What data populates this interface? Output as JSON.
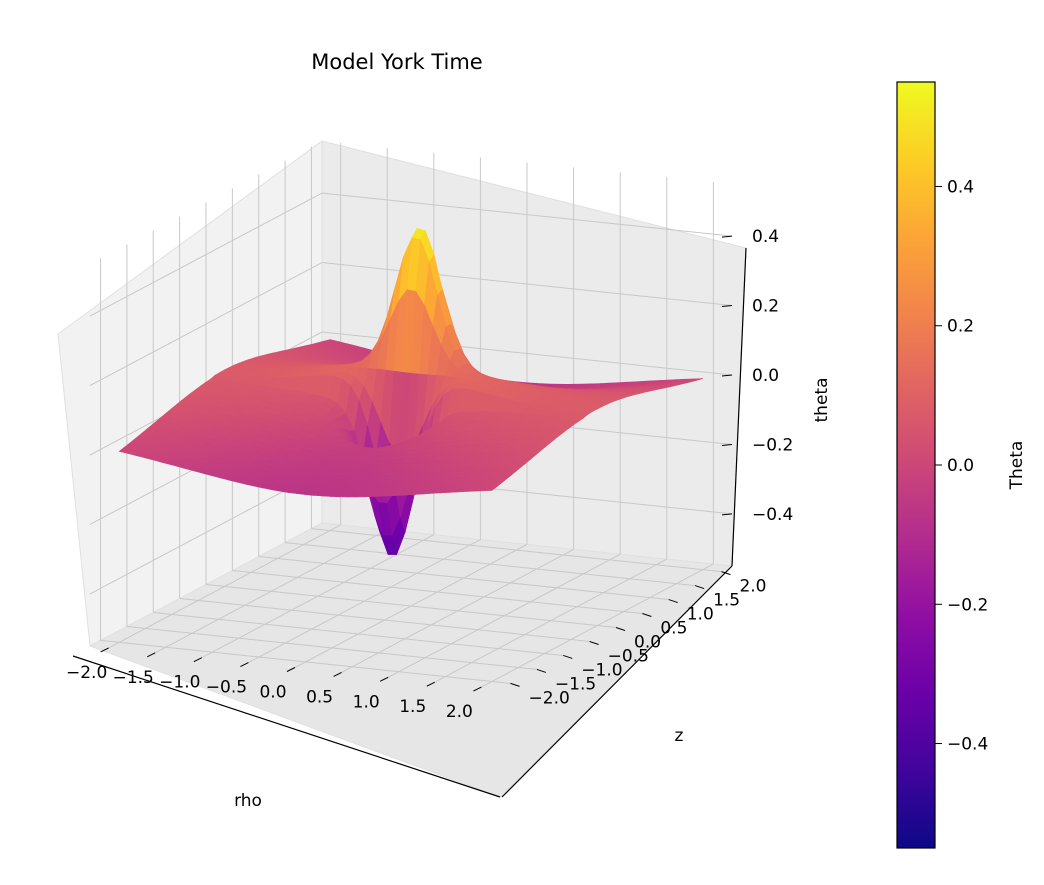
{
  "chart_data": {
    "type": "surface3d",
    "title": "Model York Time",
    "xlabel": "rho",
    "ylabel": "z",
    "zlabel": "theta",
    "x_ticks": [
      "−2.0",
      "−1.5",
      "−1.0",
      "−0.5",
      "0.0",
      "0.5",
      "1.0",
      "1.5",
      "2.0"
    ],
    "y_ticks": [
      "−2.0",
      "−1.5",
      "−1.0",
      "−0.5",
      "0.0",
      "0.5",
      "1.0",
      "1.5",
      "2.0"
    ],
    "z_ticks": [
      "−0.4",
      "−0.2",
      "0.0",
      "0.2",
      "0.4"
    ],
    "xlim": [
      -2.2,
      2.2
    ],
    "ylim": [
      -2.2,
      2.2
    ],
    "zlim": [
      -0.55,
      0.55
    ],
    "colorbar": {
      "label": "Theta",
      "colormap": "plasma",
      "range": [
        -0.55,
        0.55
      ],
      "ticks": [
        "−0.4",
        "−0.2",
        "0.0",
        "0.2",
        "0.4"
      ]
    },
    "surface": {
      "peak": {
        "rho": 0.0,
        "z": 0.0,
        "theta": 0.55
      },
      "trough": {
        "rho": 0.0,
        "z": 0.0,
        "theta": -0.55
      },
      "corner_values": [
        {
          "rho": -2.0,
          "z": -2.0,
          "theta": 0.1
        },
        {
          "rho": -2.0,
          "z": 2.0,
          "theta": -0.1
        },
        {
          "rho": 2.0,
          "z": 2.0,
          "theta": 0.1
        },
        {
          "rho": 2.0,
          "z": -2.0,
          "theta": -0.1
        }
      ]
    },
    "grid": true
  }
}
